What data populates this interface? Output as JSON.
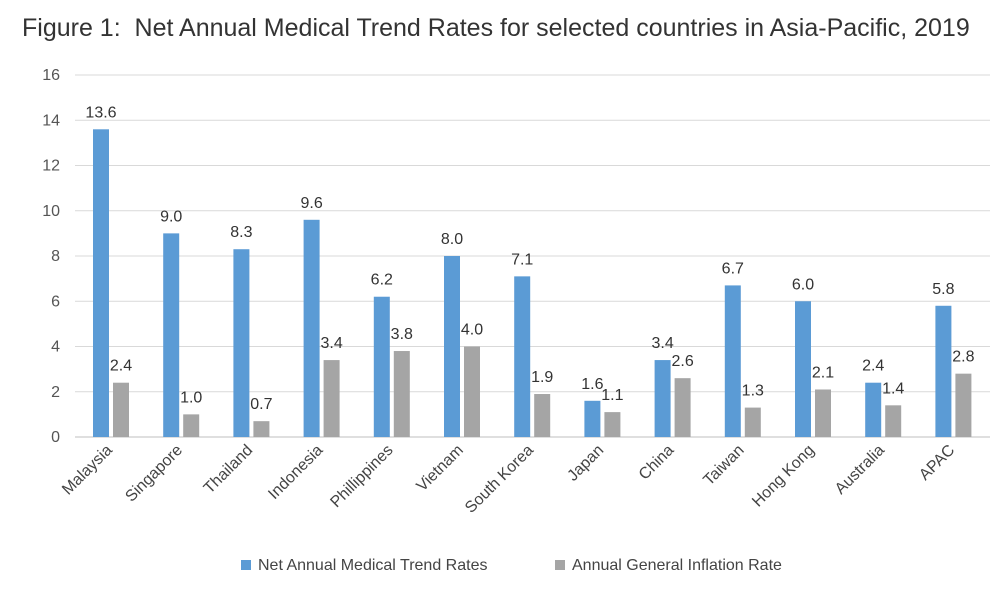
{
  "chart_data": {
    "type": "bar",
    "title": "Figure 1:  Net Annual Medical Trend Rates for selected countries in Asia-Pacific, 2019",
    "xlabel": "",
    "ylabel": "",
    "ylim": [
      0,
      16
    ],
    "yticks": [
      0,
      2,
      4,
      6,
      8,
      10,
      12,
      14,
      16
    ],
    "grid": true,
    "legend_position": "bottom",
    "categories": [
      "Malaysia",
      "Singapore",
      "Thailand",
      "Indonesia",
      "Phillippines",
      "Vietnam",
      "South Korea",
      "Japan",
      "China",
      "Taiwan",
      "Hong Kong",
      "Australia",
      "APAC"
    ],
    "series": [
      {
        "name": "Net Annual Medical Trend Rates",
        "color": "#5b9bd5",
        "values": [
          13.6,
          9.0,
          8.3,
          9.6,
          6.2,
          8.0,
          7.1,
          1.6,
          3.4,
          6.7,
          6.0,
          2.4,
          5.8
        ],
        "labels": [
          "13.6",
          "9.0",
          "8.3",
          "9.6",
          "6.2",
          "8.0",
          "7.1",
          "1.6",
          "3.4",
          "6.7",
          "6.0",
          "2.4",
          "5.8"
        ]
      },
      {
        "name": "Annual General Inflation Rate",
        "color": "#a5a5a5",
        "values": [
          2.4,
          1.0,
          0.7,
          3.4,
          3.8,
          4.0,
          1.9,
          1.1,
          2.6,
          1.3,
          2.1,
          1.4,
          2.8
        ],
        "labels": [
          "2.4",
          "1.0",
          "0.7",
          "3.4",
          "3.8",
          "4.0",
          "1.9",
          "1.1",
          "2.6",
          "1.3",
          "2.1",
          "1.4",
          "2.8"
        ]
      }
    ]
  }
}
